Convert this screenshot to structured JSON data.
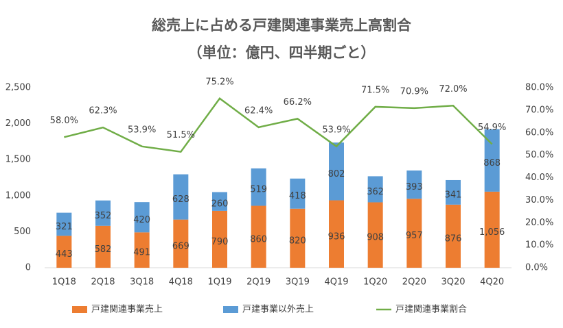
{
  "chart_data": {
    "type": "combo",
    "title": "総売上に占める戸建関連事業売上高割合",
    "subtitle": "（単位：億円、四半期ごと）",
    "categories": [
      "1Q18",
      "2Q18",
      "3Q18",
      "4Q18",
      "1Q19",
      "2Q19",
      "3Q19",
      "4Q19",
      "1Q20",
      "2Q20",
      "3Q20",
      "4Q20"
    ],
    "series": [
      {
        "name": "戸建関連事業売上",
        "type": "bar",
        "color": "#ED7D31",
        "values": [
          443,
          582,
          491,
          669,
          790,
          860,
          820,
          936,
          908,
          957,
          876,
          1056
        ],
        "value_labels": [
          "443",
          "582",
          "491",
          "669",
          "790",
          "860",
          "820",
          "936",
          "908",
          "957",
          "876",
          "1,056"
        ]
      },
      {
        "name": "戸建事業以外売上",
        "type": "bar",
        "color": "#5B9BD5",
        "values": [
          321,
          352,
          420,
          628,
          260,
          519,
          418,
          802,
          362,
          393,
          341,
          868
        ]
      },
      {
        "name": "戸建関連事業割合",
        "type": "line",
        "axis": "y2",
        "color": "#70AD47",
        "values": [
          58.0,
          62.3,
          53.9,
          51.5,
          75.2,
          62.4,
          66.2,
          53.9,
          71.5,
          70.9,
          72.0,
          54.9
        ],
        "value_labels": [
          "58.0%",
          "62.3%",
          "53.9%",
          "51.5%",
          "75.2%",
          "62.4%",
          "66.2%",
          "53.9%",
          "71.5%",
          "70.9%",
          "72.0%",
          "54.9%"
        ]
      }
    ],
    "stacked": true,
    "ylim": [
      0,
      2500
    ],
    "yticks": [
      0,
      500,
      {
        "value": 1000,
        "label": "1,000"
      },
      {
        "value": 1500,
        "label": "1,500"
      },
      {
        "value": 2000,
        "label": "2,000"
      },
      {
        "value": 2500,
        "label": "2,500"
      }
    ],
    "y2lim": [
      0,
      80
    ],
    "y2ticks": [
      {
        "value": 0,
        "label": "0.0%"
      },
      {
        "value": 10,
        "label": "10.0%"
      },
      {
        "value": 20,
        "label": "20.0%"
      },
      {
        "value": 30,
        "label": "30.0%"
      },
      {
        "value": 40,
        "label": "40.0%"
      },
      {
        "value": 50,
        "label": "50.0%"
      },
      {
        "value": 60,
        "label": "60.0%"
      },
      {
        "value": 70,
        "label": "70.0%"
      },
      {
        "value": 80,
        "label": "80.0%"
      }
    ],
    "grid": false
  }
}
